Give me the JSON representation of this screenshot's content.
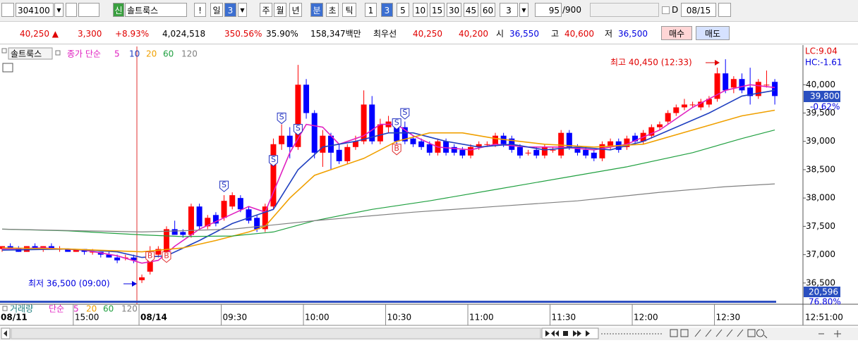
{
  "toolbar": {
    "code": "304100",
    "new_tag": "신",
    "name": "솔트룩스",
    "alert": "!",
    "period_buttons": [
      "일",
      "3",
      "주",
      "월",
      "년",
      "분",
      "초",
      "틱"
    ],
    "minute_buttons": [
      "1",
      "3",
      "5",
      "10",
      "15",
      "30",
      "45",
      "60"
    ],
    "count": "3",
    "range": "95",
    "range_max": "/900",
    "d_label": "D",
    "date": "08/15"
  },
  "quote": {
    "price": "40,250 ▲",
    "change": "3,300",
    "change_pct": "+8.93%",
    "volume": "4,024,518",
    "volume_ratio": "350.56%",
    "turnover": "35.90%",
    "amount": "158,347백만",
    "best_label": "최우선",
    "ask": "40,250",
    "bid": "40,200",
    "open_label": "시",
    "open": "36,550",
    "high_label": "고",
    "high": "40,600",
    "low_label": "저",
    "low": "36,500",
    "buy": "매수",
    "sell": "매도"
  },
  "chart_data": {
    "type": "candlestick",
    "title": "솔트룩스",
    "ma_label": "종가 단순",
    "categories": [
      "08/11",
      null,
      null,
      null,
      null,
      null,
      null,
      null,
      null,
      "15:00",
      null,
      null,
      null,
      null,
      null,
      null,
      null,
      "08/14",
      null,
      null,
      null,
      null,
      null,
      null,
      null,
      null,
      null,
      "09:30",
      null,
      null,
      null,
      null,
      null,
      null,
      null,
      null,
      null,
      "10:00",
      null,
      null,
      null,
      null,
      null,
      null,
      null,
      null,
      null,
      "10:30",
      null,
      null,
      null,
      null,
      null,
      null,
      null,
      null,
      null,
      "11:00",
      null,
      null,
      null,
      null,
      null,
      null,
      null,
      null,
      null,
      "11:30",
      null,
      null,
      null,
      null,
      null,
      null,
      null,
      null,
      null,
      "12:00",
      null,
      null,
      null,
      null,
      null,
      null,
      null,
      null,
      null,
      "12:30",
      null,
      null,
      null,
      null,
      null,
      null,
      null
    ],
    "open": [
      37100,
      37150,
      37100,
      37050,
      37150,
      37100,
      37150,
      37100,
      37100,
      37050,
      37100,
      37050,
      37050,
      37000,
      36950,
      36950,
      36950,
      36550,
      36700,
      37000,
      37050,
      37450,
      37400,
      37350,
      37850,
      37500,
      37700,
      37650,
      37850,
      38000,
      37800,
      37650,
      37450,
      37850,
      38950,
      39100,
      38900,
      40000,
      39500,
      38800,
      39100,
      38850,
      38650,
      38900,
      39000,
      39650,
      39000,
      39250,
      39350,
      39250,
      39050,
      39000,
      38950,
      38800,
      39000,
      38900,
      38850,
      38750,
      38900,
      38950,
      38950,
      39100,
      39050,
      38900,
      38800,
      38850,
      38750,
      38850,
      38750,
      39150,
      38900,
      38850,
      38800,
      38700,
      38900,
      39000,
      38900,
      39100,
      39000,
      39100,
      39250,
      39350,
      39500,
      39600,
      39650,
      39600,
      39650,
      39750,
      40200,
      39950,
      40100,
      39950,
      39800,
      40000,
      40050
    ],
    "high": [
      37150,
      37200,
      37150,
      37150,
      37200,
      37150,
      37200,
      37150,
      37100,
      37100,
      37100,
      37100,
      37050,
      37050,
      37000,
      37000,
      37000,
      36650,
      37150,
      37150,
      37500,
      37600,
      37450,
      37900,
      37900,
      37700,
      37750,
      38050,
      38100,
      38050,
      37850,
      37700,
      37900,
      39050,
      39300,
      39250,
      40350,
      40100,
      39550,
      39200,
      39150,
      38950,
      38950,
      39100,
      39900,
      39800,
      39400,
      39450,
      39400,
      39350,
      39100,
      39050,
      39000,
      39050,
      39050,
      38950,
      38900,
      38950,
      39000,
      39000,
      39150,
      39150,
      39100,
      38950,
      38850,
      38900,
      38950,
      38900,
      39200,
      39200,
      38950,
      38900,
      38850,
      39000,
      39050,
      39050,
      39100,
      39150,
      39200,
      39300,
      39350,
      39550,
      39650,
      39750,
      39700,
      39750,
      39800,
      40300,
      40450,
      40150,
      40200,
      40300,
      40100,
      40250,
      40100
    ],
    "low": [
      37050,
      37100,
      37050,
      37050,
      37100,
      37050,
      37100,
      37050,
      37050,
      37050,
      37000,
      37000,
      36950,
      36950,
      36850,
      36900,
      36850,
      36500,
      36650,
      36950,
      37000,
      37350,
      37300,
      37300,
      37450,
      37450,
      37500,
      37600,
      37800,
      37750,
      37550,
      37400,
      37400,
      37800,
      38850,
      38700,
      38850,
      39400,
      38700,
      38550,
      38500,
      38600,
      38600,
      38850,
      38950,
      38950,
      38950,
      39150,
      38950,
      38950,
      38900,
      38850,
      38750,
      38750,
      38750,
      38750,
      38700,
      38700,
      38850,
      38900,
      38900,
      38900,
      38800,
      38700,
      38750,
      38700,
      38700,
      38800,
      38700,
      38850,
      38750,
      38700,
      38650,
      38650,
      38850,
      38800,
      38850,
      38950,
      38950,
      39050,
      39200,
      39300,
      39450,
      39550,
      39600,
      39550,
      39600,
      39700,
      39850,
      39850,
      39850,
      39650,
      39750,
      39950,
      39650
    ],
    "close": [
      37150,
      37100,
      37050,
      37150,
      37100,
      37150,
      37100,
      37100,
      37050,
      37100,
      37050,
      37050,
      37000,
      36950,
      36900,
      36950,
      36900,
      36600,
      37050,
      37100,
      37450,
      37350,
      37350,
      37850,
      37500,
      37650,
      37550,
      37950,
      38050,
      37800,
      37600,
      37450,
      37850,
      38950,
      39100,
      38900,
      40000,
      39500,
      38800,
      39100,
      38800,
      38650,
      38900,
      39000,
      39650,
      39000,
      39300,
      39350,
      39000,
      39000,
      38950,
      38900,
      38800,
      39000,
      38800,
      38800,
      38750,
      38900,
      38950,
      38950,
      39100,
      38950,
      38850,
      38750,
      38800,
      38750,
      38900,
      38850,
      39150,
      38900,
      38800,
      38750,
      38700,
      38950,
      39000,
      38850,
      39050,
      39000,
      39150,
      39250,
      39300,
      39500,
      39600,
      39650,
      39650,
      39700,
      39750,
      40200,
      39900,
      40100,
      39900,
      39800,
      40050,
      40000,
      39800
    ],
    "up_color": "#ff0000",
    "down_color": "#0000ff",
    "moving_averages": [
      {
        "name": "5",
        "color": "#e020c0",
        "x": [
          0,
          5,
          10,
          14,
          17,
          19,
          21,
          24,
          27,
          30,
          32,
          33,
          35,
          37,
          39,
          41,
          44,
          46,
          48,
          50,
          53,
          57,
          60,
          64,
          68,
          72,
          76,
          80,
          84,
          88,
          91,
          94
        ],
        "values": [
          37100,
          37120,
          37080,
          36980,
          36850,
          36900,
          37150,
          37450,
          37650,
          37850,
          37750,
          38100,
          38800,
          39300,
          39250,
          38950,
          39100,
          39300,
          39300,
          39100,
          38900,
          38850,
          38950,
          38900,
          38900,
          38850,
          38950,
          39200,
          39600,
          39900,
          40000,
          39950
        ]
      },
      {
        "name": "10",
        "color": "#2040c0",
        "x": [
          0,
          8,
          14,
          17,
          20,
          24,
          28,
          31,
          33,
          36,
          39,
          43,
          47,
          50,
          54,
          58,
          62,
          66,
          70,
          74,
          78,
          82,
          86,
          90,
          94
        ],
        "values": [
          37080,
          37100,
          37050,
          36950,
          36980,
          37250,
          37550,
          37700,
          37800,
          38500,
          38900,
          39000,
          39150,
          39150,
          39000,
          38900,
          38950,
          38850,
          38900,
          38850,
          39000,
          39250,
          39500,
          39800,
          39900
        ]
      },
      {
        "name": "20",
        "color": "#f0a000",
        "x": [
          0,
          8,
          17,
          22,
          26,
          30,
          32,
          35,
          38,
          41,
          44,
          48,
          52,
          56,
          60,
          66,
          72,
          78,
          84,
          90,
          94
        ],
        "values": [
          37120,
          37100,
          37050,
          37120,
          37250,
          37400,
          37500,
          38000,
          38400,
          38550,
          38700,
          39000,
          39150,
          39150,
          39050,
          38950,
          38900,
          38950,
          39200,
          39450,
          39550
        ]
      },
      {
        "name": "60",
        "color": "#20a040",
        "x": [
          0,
          8,
          17,
          22,
          28,
          33,
          38,
          45,
          52,
          60,
          68,
          76,
          84,
          90,
          94
        ],
        "values": [
          37450,
          37420,
          37350,
          37320,
          37330,
          37400,
          37600,
          37800,
          37950,
          38150,
          38350,
          38550,
          38800,
          39050,
          39200
        ]
      },
      {
        "name": "120",
        "color": "#808080",
        "x": [
          0,
          17,
          28,
          38,
          50,
          60,
          70,
          80,
          88,
          94
        ],
        "values": [
          37450,
          37400,
          37450,
          37600,
          37750,
          37850,
          37950,
          38100,
          38200,
          38250
        ]
      }
    ],
    "signals": [
      {
        "label": "B",
        "index": 18,
        "price": 36950
      },
      {
        "label": "B",
        "index": 20,
        "price": 36950
      },
      {
        "label": "S",
        "index": 27,
        "price": 38200
      },
      {
        "label": "S",
        "index": 33,
        "price": 38650
      },
      {
        "label": "S",
        "index": 34,
        "price": 39400
      },
      {
        "label": "S",
        "index": 36,
        "price": 39200
      },
      {
        "label": "S",
        "index": 48,
        "price": 39300
      },
      {
        "label": "S",
        "index": 49,
        "price": 39480
      },
      {
        "label": "B",
        "index": 48,
        "price": 38850
      }
    ],
    "high_annotation": "최고 40,450 (12:33)",
    "low_annotation": "최저 36,500 (09:00)",
    "ylim": [
      36150,
      40650
    ],
    "yticks": [
      {
        "value": 36500,
        "label": "36,500"
      },
      {
        "value": 37000,
        "label": "37,000"
      },
      {
        "value": 37500,
        "label": "37,500"
      },
      {
        "value": 38000,
        "label": "38,000"
      },
      {
        "value": 38500,
        "label": "38,500"
      },
      {
        "value": 39000,
        "label": "39,000"
      },
      {
        "value": 39500,
        "label": "39,500"
      },
      {
        "value": 40000,
        "label": "40,000"
      }
    ],
    "lc_label": "LC:9.04",
    "hc_label": "HC:-1.61",
    "current_price_label": "39,800",
    "current_change_label": "-0.62%",
    "volume_label": "20,596",
    "volume_pct_label": "76.80%",
    "cursor_time_label": "12:51:00",
    "volume_legend": {
      "label": "거래량",
      "ma_label": "단순",
      "periods": [
        "5",
        "20",
        "60",
        "120"
      ]
    }
  }
}
